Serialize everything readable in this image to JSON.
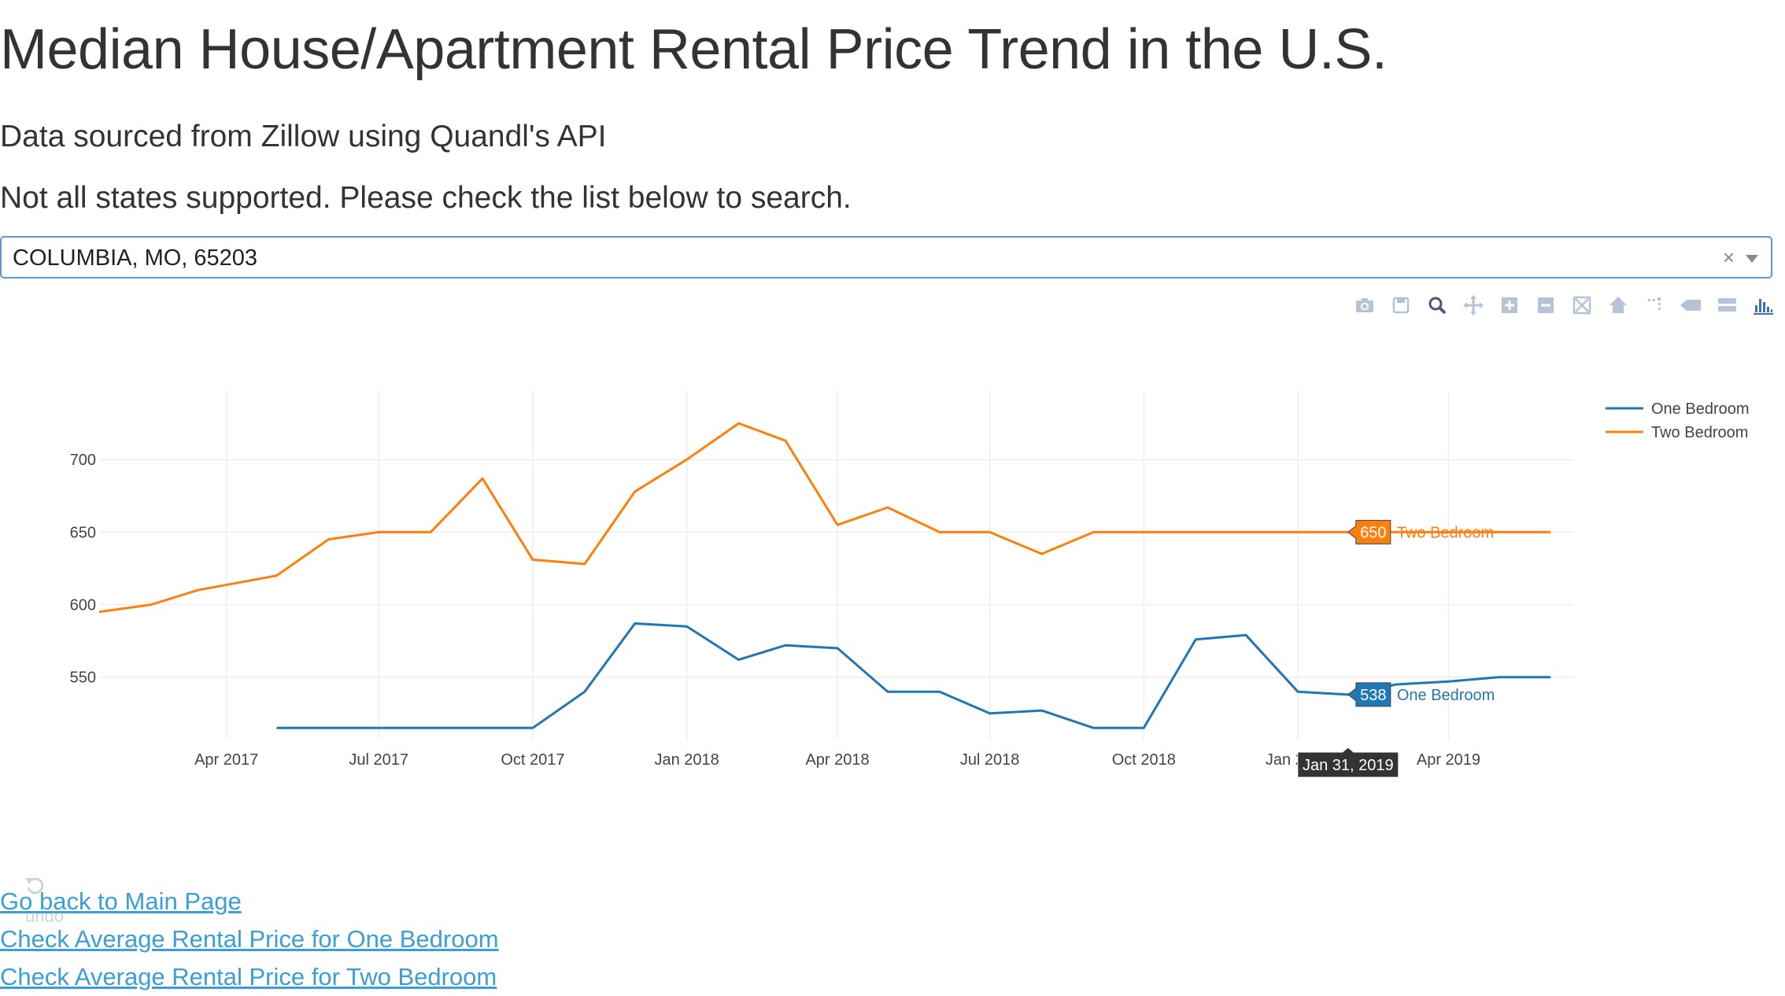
{
  "page": {
    "title": "Median House/Apartment Rental Price Trend in the U.S.",
    "source_note": "Data sourced from Zillow using Quandl's API",
    "support_note": "Not all states supported. Please check the list below to search."
  },
  "location_select": {
    "value": "COLUMBIA, MO, 65203",
    "clear_icon": "clear-x-icon",
    "dropdown_icon": "chevron-down-icon"
  },
  "modebar": {
    "icons": [
      "camera-icon",
      "save-icon",
      "zoom-icon",
      "pan-icon",
      "zoom-in-icon",
      "zoom-out-icon",
      "autoscale-icon",
      "reset-axes-icon",
      "spike-lines-icon",
      "hover-closest-icon",
      "hover-compare-icon",
      "plotly-logo-icon"
    ]
  },
  "colors": {
    "one_bedroom": "#1f77b4",
    "two_bedroom": "#ff7f0e",
    "link": "#3a9fd6"
  },
  "chart_data": {
    "type": "line",
    "x_tick_labels": [
      "Apr 2017",
      "Jul 2017",
      "Oct 2017",
      "Jan 2018",
      "Apr 2018",
      "Jul 2018",
      "Oct 2018",
      "Jan 2019",
      "Apr 2019"
    ],
    "y_tick_labels": [
      "550",
      "600",
      "650",
      "700"
    ],
    "ylim": [
      507,
      737
    ],
    "xlim": [
      "2017-01-15",
      "2019-06-15"
    ],
    "grid": true,
    "legend_position": "top-right",
    "series": [
      {
        "name": "One Bedroom",
        "color": "#1f77b4",
        "points": [
          {
            "x": "2017-05-01",
            "y": 515
          },
          {
            "x": "2017-06-01",
            "y": 515
          },
          {
            "x": "2017-07-01",
            "y": 515
          },
          {
            "x": "2017-08-01",
            "y": 515
          },
          {
            "x": "2017-09-01",
            "y": 515
          },
          {
            "x": "2017-10-01",
            "y": 515
          },
          {
            "x": "2017-11-01",
            "y": 540
          },
          {
            "x": "2017-12-01",
            "y": 587
          },
          {
            "x": "2018-01-01",
            "y": 585
          },
          {
            "x": "2018-02-01",
            "y": 562
          },
          {
            "x": "2018-03-01",
            "y": 572
          },
          {
            "x": "2018-04-01",
            "y": 570
          },
          {
            "x": "2018-05-01",
            "y": 540
          },
          {
            "x": "2018-06-01",
            "y": 540
          },
          {
            "x": "2018-07-01",
            "y": 525
          },
          {
            "x": "2018-08-01",
            "y": 527
          },
          {
            "x": "2018-09-01",
            "y": 515
          },
          {
            "x": "2018-10-01",
            "y": 515
          },
          {
            "x": "2018-11-01",
            "y": 576
          },
          {
            "x": "2018-12-01",
            "y": 579
          },
          {
            "x": "2019-01-01",
            "y": 540
          },
          {
            "x": "2019-01-31",
            "y": 538
          },
          {
            "x": "2019-03-01",
            "y": 545
          },
          {
            "x": "2019-04-01",
            "y": 547
          },
          {
            "x": "2019-05-01",
            "y": 550
          },
          {
            "x": "2019-06-01",
            "y": 550
          }
        ]
      },
      {
        "name": "Two Bedroom",
        "color": "#ff7f0e",
        "points": [
          {
            "x": "2017-01-15",
            "y": 595
          },
          {
            "x": "2017-02-15",
            "y": 600
          },
          {
            "x": "2017-03-15",
            "y": 610
          },
          {
            "x": "2017-05-01",
            "y": 620
          },
          {
            "x": "2017-06-01",
            "y": 645
          },
          {
            "x": "2017-07-01",
            "y": 650
          },
          {
            "x": "2017-08-01",
            "y": 650
          },
          {
            "x": "2017-09-01",
            "y": 687
          },
          {
            "x": "2017-10-01",
            "y": 631
          },
          {
            "x": "2017-11-01",
            "y": 628
          },
          {
            "x": "2017-12-01",
            "y": 678
          },
          {
            "x": "2018-01-01",
            "y": 700
          },
          {
            "x": "2018-02-01",
            "y": 725
          },
          {
            "x": "2018-03-01",
            "y": 713
          },
          {
            "x": "2018-04-01",
            "y": 655
          },
          {
            "x": "2018-05-01",
            "y": 667
          },
          {
            "x": "2018-06-01",
            "y": 650
          },
          {
            "x": "2018-07-01",
            "y": 650
          },
          {
            "x": "2018-08-01",
            "y": 635
          },
          {
            "x": "2018-09-01",
            "y": 650
          },
          {
            "x": "2018-10-01",
            "y": 650
          },
          {
            "x": "2018-11-01",
            "y": 650
          },
          {
            "x": "2018-12-01",
            "y": 650
          },
          {
            "x": "2019-01-01",
            "y": 650
          },
          {
            "x": "2019-01-31",
            "y": 650
          },
          {
            "x": "2019-03-01",
            "y": 650
          },
          {
            "x": "2019-04-01",
            "y": 650
          },
          {
            "x": "2019-05-01",
            "y": 650
          },
          {
            "x": "2019-06-01",
            "y": 650
          }
        ]
      }
    ],
    "hover": {
      "x": "2019-01-31",
      "x_label": "Jan 31, 2019",
      "items": [
        {
          "series": "Two Bedroom",
          "value": "650",
          "label": "Two Bedroom"
        },
        {
          "series": "One Bedroom",
          "value": "538",
          "label": "One Bedroom"
        }
      ]
    }
  },
  "links": [
    "Go back to Main Page",
    "Check Average Rental Price for One Bedroom",
    "Check Average Rental Price for Two Bedroom"
  ],
  "undo_widget": {
    "label": "undo",
    "icon": "undo-icon"
  }
}
